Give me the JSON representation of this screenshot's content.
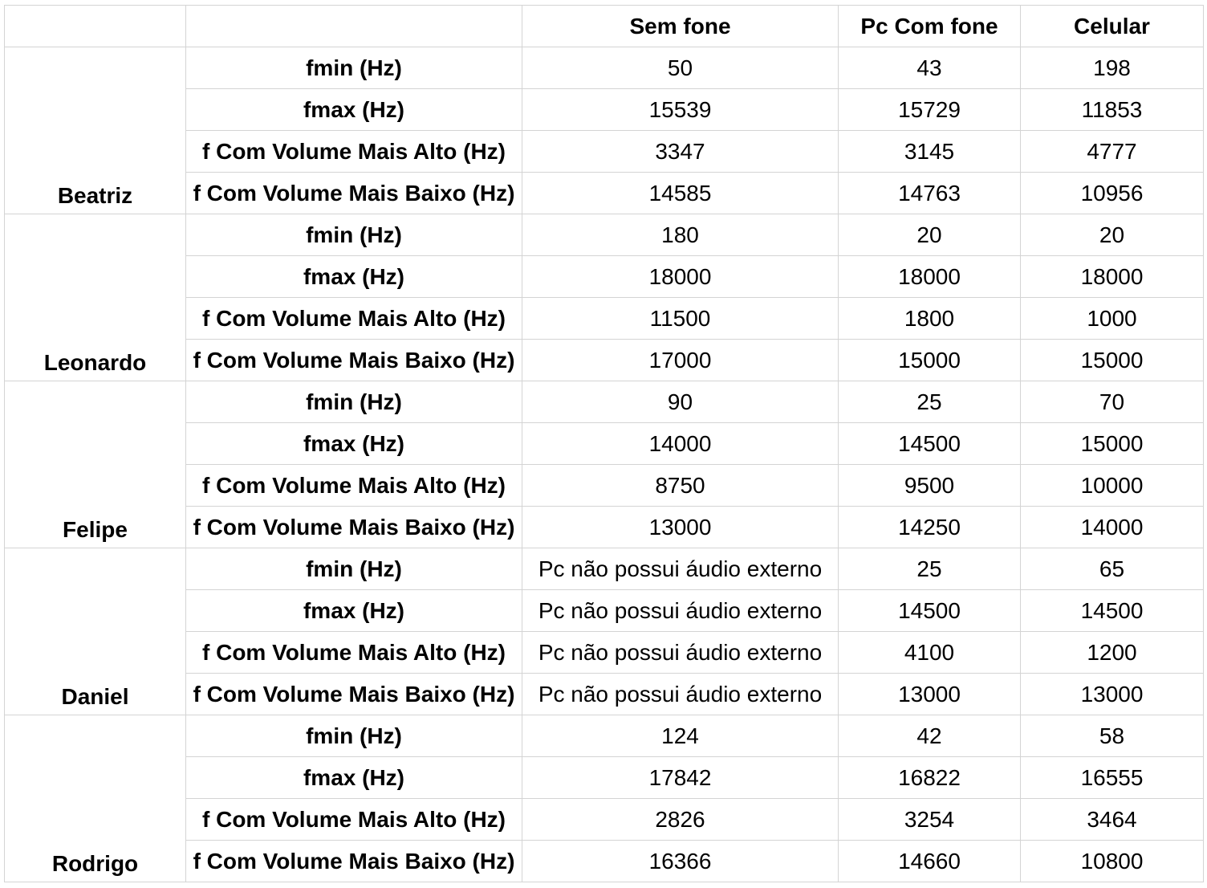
{
  "header": {
    "col1": "",
    "col2": "",
    "col3": "Sem fone",
    "col4": "Pc Com fone",
    "col5": "Celular"
  },
  "groups": [
    {
      "name": "Beatriz",
      "rows": [
        {
          "label": "fmin (Hz)",
          "sem_fone": "50",
          "pc_com_fone": "43",
          "celular": "198"
        },
        {
          "label": "fmax (Hz)",
          "sem_fone": "15539",
          "pc_com_fone": "15729",
          "celular": "11853"
        },
        {
          "label": "f Com Volume Mais Alto (Hz)",
          "sem_fone": "3347",
          "pc_com_fone": "3145",
          "celular": "4777"
        },
        {
          "label": "f Com Volume Mais Baixo (Hz)",
          "sem_fone": "14585",
          "pc_com_fone": "14763",
          "celular": "10956"
        }
      ]
    },
    {
      "name": "Leonardo",
      "rows": [
        {
          "label": "fmin (Hz)",
          "sem_fone": "180",
          "pc_com_fone": "20",
          "celular": "20"
        },
        {
          "label": "fmax (Hz)",
          "sem_fone": "18000",
          "pc_com_fone": "18000",
          "celular": "18000"
        },
        {
          "label": "f Com Volume Mais Alto (Hz)",
          "sem_fone": "11500",
          "pc_com_fone": "1800",
          "celular": "1000"
        },
        {
          "label": "f Com Volume Mais Baixo (Hz)",
          "sem_fone": "17000",
          "pc_com_fone": "15000",
          "celular": "15000"
        }
      ]
    },
    {
      "name": "Felipe",
      "rows": [
        {
          "label": "fmin (Hz)",
          "sem_fone": "90",
          "pc_com_fone": "25",
          "celular": "70"
        },
        {
          "label": "fmax (Hz)",
          "sem_fone": "14000",
          "pc_com_fone": "14500",
          "celular": "15000"
        },
        {
          "label": "f Com Volume Mais Alto (Hz)",
          "sem_fone": "8750",
          "pc_com_fone": "9500",
          "celular": "10000"
        },
        {
          "label": "f Com Volume Mais Baixo (Hz)",
          "sem_fone": "13000",
          "pc_com_fone": "14250",
          "celular": "14000"
        }
      ]
    },
    {
      "name": "Daniel",
      "rows": [
        {
          "label": "fmin (Hz)",
          "sem_fone": "Pc não possui áudio externo",
          "pc_com_fone": "25",
          "celular": "65"
        },
        {
          "label": "fmax (Hz)",
          "sem_fone": "Pc não possui áudio externo",
          "pc_com_fone": "14500",
          "celular": "14500"
        },
        {
          "label": "f Com Volume Mais Alto (Hz)",
          "sem_fone": "Pc não possui áudio externo",
          "pc_com_fone": "4100",
          "celular": "1200"
        },
        {
          "label": "f Com Volume Mais Baixo (Hz)",
          "sem_fone": "Pc não possui áudio externo",
          "pc_com_fone": "13000",
          "celular": "13000"
        }
      ]
    },
    {
      "name": "Rodrigo",
      "rows": [
        {
          "label": "fmin (Hz)",
          "sem_fone": "124",
          "pc_com_fone": "42",
          "celular": "58"
        },
        {
          "label": "fmax (Hz)",
          "sem_fone": "17842",
          "pc_com_fone": "16822",
          "celular": "16555"
        },
        {
          "label": "f Com Volume Mais Alto (Hz)",
          "sem_fone": "2826",
          "pc_com_fone": "3254",
          "celular": "3464"
        },
        {
          "label": "f Com Volume Mais Baixo (Hz)",
          "sem_fone": "16366",
          "pc_com_fone": "14660",
          "celular": "10800"
        }
      ]
    }
  ]
}
